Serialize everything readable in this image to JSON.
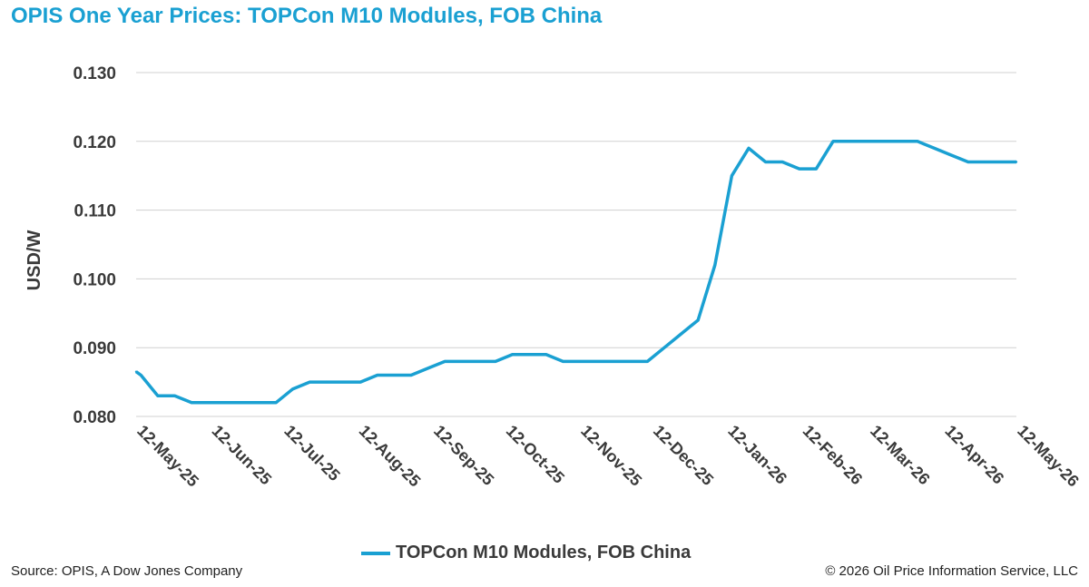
{
  "title": "OPIS One Year Prices: TOPCon M10 Modules, FOB China",
  "source": "Source: OPIS, A Dow Jones Company",
  "copyright": "© 2026 Oil Price Information Service, LLC",
  "colors": {
    "title": "#1aa0d2",
    "series": "#1aa0d2",
    "grid": "#d0d0d0",
    "text": "#3a3a3a"
  },
  "chart_data": {
    "type": "line",
    "title": "OPIS One Year Prices: TOPCon M10 Modules, FOB China",
    "xlabel": "",
    "ylabel": "USD/W",
    "ylim": [
      0.08,
      0.13
    ],
    "yticks": [
      "0.080",
      "0.090",
      "0.100",
      "0.110",
      "0.120",
      "0.130"
    ],
    "xlim": [
      "2025-05-12",
      "2026-05-12"
    ],
    "xticks": [
      "12-May-25",
      "12-Jun-25",
      "12-Jul-25",
      "12-Aug-25",
      "12-Sep-25",
      "12-Oct-25",
      "12-Nov-25",
      "12-Dec-25",
      "12-Jan-26",
      "12-Feb-26",
      "12-Mar-26",
      "12-Apr-26",
      "12-May-26"
    ],
    "grid": true,
    "legend": "bottom",
    "series": [
      {
        "name": "TOPCon M10 Modules, FOB China",
        "x": [
          "2025-05-12",
          "2025-05-14",
          "2025-05-21",
          "2025-05-28",
          "2025-06-04",
          "2025-06-11",
          "2025-06-18",
          "2025-06-25",
          "2025-07-02",
          "2025-07-09",
          "2025-07-16",
          "2025-07-23",
          "2025-07-30",
          "2025-08-06",
          "2025-08-13",
          "2025-08-20",
          "2025-08-27",
          "2025-09-03",
          "2025-09-10",
          "2025-09-17",
          "2025-09-24",
          "2025-10-01",
          "2025-10-08",
          "2025-10-15",
          "2025-10-22",
          "2025-10-29",
          "2025-11-05",
          "2025-11-12",
          "2025-11-19",
          "2025-11-26",
          "2025-12-03",
          "2025-12-10",
          "2025-12-17",
          "2025-12-24",
          "2025-12-31",
          "2026-01-07",
          "2026-01-14",
          "2026-01-21",
          "2026-01-28",
          "2026-02-04",
          "2026-02-11",
          "2026-02-18",
          "2026-02-25",
          "2026-03-04",
          "2026-03-11",
          "2026-03-18",
          "2026-03-25",
          "2026-04-01",
          "2026-04-08",
          "2026-04-15",
          "2026-04-22",
          "2026-04-29",
          "2026-05-06",
          "2026-05-12"
        ],
        "y": [
          0.0865,
          0.086,
          0.083,
          0.083,
          0.082,
          0.082,
          0.082,
          0.082,
          0.082,
          0.082,
          0.084,
          0.085,
          0.085,
          0.085,
          0.085,
          0.086,
          0.086,
          0.086,
          0.087,
          0.088,
          0.088,
          0.088,
          0.088,
          0.089,
          0.089,
          0.089,
          0.088,
          0.088,
          0.088,
          0.088,
          0.088,
          0.088,
          0.09,
          0.092,
          0.094,
          0.102,
          0.115,
          0.119,
          0.117,
          0.117,
          0.116,
          0.116,
          0.12,
          0.12,
          0.12,
          0.12,
          0.12,
          0.12,
          0.119,
          0.118,
          0.117,
          0.117,
          0.117,
          0.117
        ]
      }
    ]
  }
}
